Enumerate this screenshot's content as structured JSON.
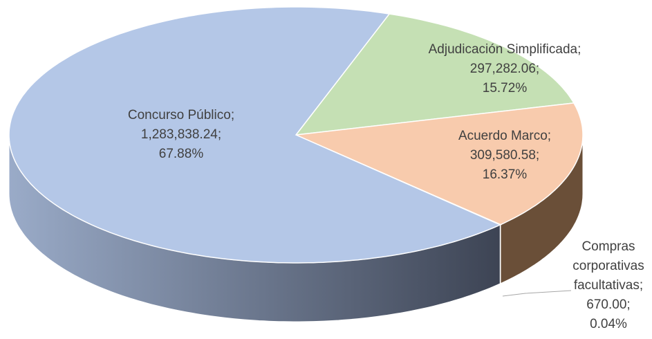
{
  "chart_data": {
    "type": "pie",
    "categories": [
      "Adjudicación Simplificada",
      "Acuerdo Marco",
      "Compras corporativas facultativas",
      "Concurso Público"
    ],
    "values": [
      297282.06,
      309580.58,
      670.0,
      1283838.24
    ],
    "value_labels": [
      "297,282.06",
      "309,580.58",
      "670.00",
      "1,283,838.24"
    ],
    "percents": [
      15.72,
      16.37,
      0.04,
      67.88
    ],
    "percent_labels": [
      "15.72%",
      "16.37%",
      "0.04%",
      "67.88%"
    ],
    "separator": ";",
    "colors": [
      "#c5e0b4",
      "#f8cbad",
      "#a9a9a9",
      "#b4c7e7"
    ],
    "side_colors": [
      "#6f8a5e",
      "#6a4f38",
      "#555555",
      "#5b6578"
    ]
  }
}
